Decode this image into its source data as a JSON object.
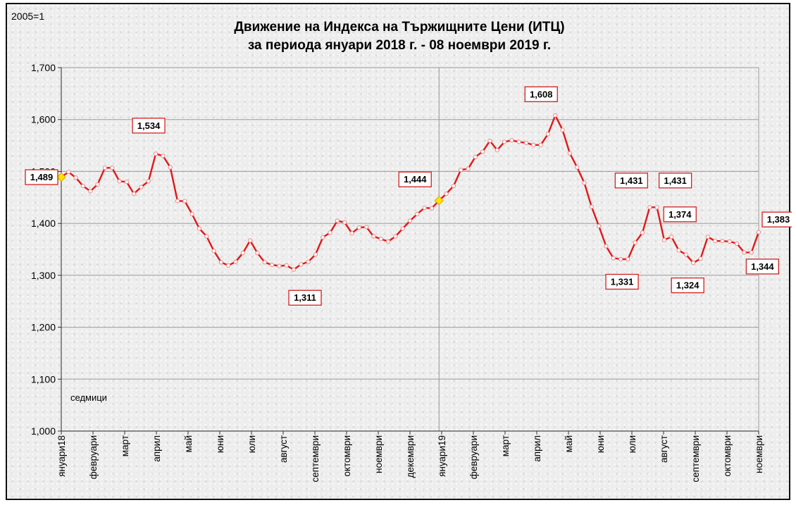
{
  "chart_data": {
    "type": "line",
    "title_line1": "Движение на Индекса на Тържищните Цени (ИТЦ)",
    "title_line2": "за периода януари 2018 г. -  08 ноември 2019 г.",
    "corner_label": "2005=1",
    "x_unit_label": "седмици",
    "ylim": [
      1.0,
      1.7
    ],
    "yticks": [
      "1,000",
      "1,100",
      "1,200",
      "1,300",
      "1,400",
      "1,500",
      "1,600",
      "1,700"
    ],
    "month_labels": [
      "януари18",
      "февруари",
      "март",
      "април",
      "май",
      "юни",
      "юли",
      "август",
      "септември",
      "октомври",
      "ноември",
      "декември",
      "януари19",
      "февруари",
      "март",
      "април",
      "май",
      "юни",
      "юли",
      "август",
      "септември",
      "октомври",
      "ноември"
    ],
    "series": [
      {
        "values": [
          1.489,
          1.499,
          1.488,
          1.472,
          1.462,
          1.475,
          1.507,
          1.507,
          1.481,
          1.48,
          1.457,
          1.47,
          1.481,
          1.534,
          1.53,
          1.508,
          1.443,
          1.443,
          1.418,
          1.39,
          1.375,
          1.347,
          1.325,
          1.319,
          1.326,
          1.343,
          1.367,
          1.343,
          1.325,
          1.32,
          1.318,
          1.319,
          1.311,
          1.321,
          1.326,
          1.34,
          1.373,
          1.382,
          1.405,
          1.402,
          1.381,
          1.392,
          1.393,
          1.375,
          1.37,
          1.365,
          1.375,
          1.39,
          1.405,
          1.418,
          1.43,
          1.429,
          1.444,
          1.457,
          1.472,
          1.503,
          1.505,
          1.528,
          1.538,
          1.559,
          1.541,
          1.557,
          1.56,
          1.557,
          1.555,
          1.551,
          1.551,
          1.572,
          1.608,
          1.58,
          1.535,
          1.508,
          1.478,
          1.432,
          1.395,
          1.356,
          1.333,
          1.331,
          1.331,
          1.363,
          1.382,
          1.431,
          1.431,
          1.368,
          1.374,
          1.348,
          1.34,
          1.324,
          1.332,
          1.374,
          1.366,
          1.366,
          1.365,
          1.361,
          1.344,
          1.344,
          1.383
        ],
        "labels": [
          {
            "index": 0,
            "text": "1,489"
          },
          {
            "index": 13,
            "text": "1,534"
          },
          {
            "index": 32,
            "text": "1,311"
          },
          {
            "index": 52,
            "text": "1,444"
          },
          {
            "index": 68,
            "text": "1,608"
          },
          {
            "index": 77,
            "text": "1,331"
          },
          {
            "index": 81,
            "text": "1,431"
          },
          {
            "index": 82,
            "text": "1,431"
          },
          {
            "index": 84,
            "text": "1,374"
          },
          {
            "index": 87,
            "text": "1,324"
          },
          {
            "index": 94,
            "text": "1,344"
          },
          {
            "index": 96,
            "text": "1,383"
          }
        ],
        "highlight_points": [
          0,
          52
        ]
      }
    ],
    "colors": {
      "line": "#e11919",
      "marker_fill": "#ffffff",
      "highlight": "#ffe300",
      "label_border": "#d42020",
      "grid": "#9a9a9a"
    }
  }
}
